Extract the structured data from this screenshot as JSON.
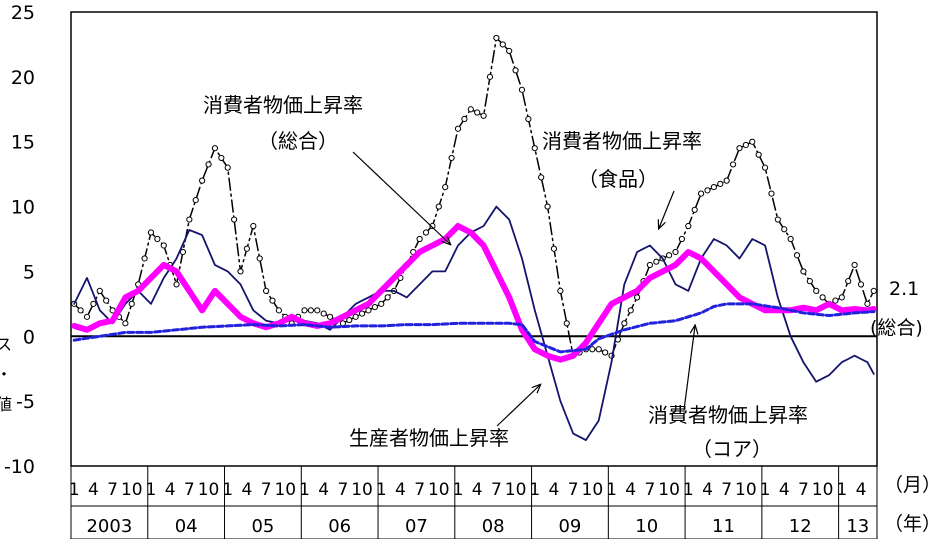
{
  "chart_data": {
    "type": "line",
    "title": "",
    "ylim": [
      -10,
      25
    ],
    "yticks": [
      "25",
      "20",
      "15",
      "10",
      "5",
      "0",
      "-5",
      "-10"
    ],
    "x_axis": {
      "month_label": "（月）",
      "year_label": "（年）",
      "year_groups": [
        {
          "year": "2003",
          "months": [
            "1",
            "4",
            "7",
            "10"
          ]
        },
        {
          "year": "04",
          "months": [
            "1",
            "4",
            "7",
            "10"
          ]
        },
        {
          "year": "05",
          "months": [
            "1",
            "4",
            "7",
            "10"
          ]
        },
        {
          "year": "06",
          "months": [
            "1",
            "4",
            "7",
            "10"
          ]
        },
        {
          "year": "07",
          "months": [
            "1",
            "4",
            "7",
            "10"
          ]
        },
        {
          "year": "08",
          "months": [
            "1",
            "4",
            "7",
            "10"
          ]
        },
        {
          "year": "09",
          "months": [
            "1",
            "4",
            "7",
            "10"
          ]
        },
        {
          "year": "10",
          "months": [
            "1",
            "4",
            "7",
            "10"
          ]
        },
        {
          "year": "11",
          "months": [
            "1",
            "4",
            "7",
            "10"
          ]
        },
        {
          "year": "12",
          "months": [
            "1",
            "4",
            "7",
            "10"
          ]
        },
        {
          "year": "13",
          "months": [
            "1",
            "4"
          ]
        }
      ]
    },
    "series": [
      {
        "name": "生産者物価上昇率",
        "color": "#14146e",
        "style": "thin-solid",
        "anchors": [
          [
            0,
            2.5
          ],
          [
            2,
            4.5
          ],
          [
            4,
            2.0
          ],
          [
            6,
            1.0
          ],
          [
            8,
            2.5
          ],
          [
            10,
            3.5
          ],
          [
            12,
            2.5
          ],
          [
            14,
            4.5
          ],
          [
            16,
            6.0
          ],
          [
            18,
            8.2
          ],
          [
            20,
            7.8
          ],
          [
            22,
            5.5
          ],
          [
            24,
            5.0
          ],
          [
            26,
            4.0
          ],
          [
            28,
            2.0
          ],
          [
            30,
            1.2
          ],
          [
            32,
            1.0
          ],
          [
            34,
            1.6
          ],
          [
            36,
            1.2
          ],
          [
            38,
            1.0
          ],
          [
            40,
            0.5
          ],
          [
            42,
            1.5
          ],
          [
            44,
            2.5
          ],
          [
            46,
            3.0
          ],
          [
            48,
            3.5
          ],
          [
            50,
            3.5
          ],
          [
            52,
            3.0
          ],
          [
            54,
            4.0
          ],
          [
            56,
            5.0
          ],
          [
            58,
            5.0
          ],
          [
            60,
            7.0
          ],
          [
            62,
            8.0
          ],
          [
            64,
            8.5
          ],
          [
            66,
            10.0
          ],
          [
            68,
            9.0
          ],
          [
            70,
            6.0
          ],
          [
            72,
            2.0
          ],
          [
            74,
            -1.5
          ],
          [
            76,
            -5.0
          ],
          [
            78,
            -7.5
          ],
          [
            80,
            -8.0
          ],
          [
            82,
            -6.5
          ],
          [
            84,
            -2.0
          ],
          [
            86,
            4.0
          ],
          [
            88,
            6.5
          ],
          [
            90,
            7.0
          ],
          [
            92,
            6.0
          ],
          [
            94,
            4.0
          ],
          [
            96,
            3.5
          ],
          [
            98,
            6.0
          ],
          [
            100,
            7.5
          ],
          [
            102,
            7.0
          ],
          [
            104,
            6.0
          ],
          [
            106,
            7.5
          ],
          [
            108,
            7.0
          ],
          [
            110,
            3.0
          ],
          [
            112,
            0.0
          ],
          [
            114,
            -2.0
          ],
          [
            116,
            -3.5
          ],
          [
            118,
            -3.0
          ],
          [
            120,
            -2.0
          ],
          [
            122,
            -1.5
          ],
          [
            124,
            -2.0
          ],
          [
            125,
            -2.9
          ]
        ]
      },
      {
        "name": "消費者物価上昇率（食品）",
        "color": "#000000",
        "style": "dash-dot with circle markers",
        "anchors": [
          [
            0,
            2.5
          ],
          [
            2,
            1.5
          ],
          [
            4,
            3.5
          ],
          [
            6,
            2.0
          ],
          [
            8,
            1.0
          ],
          [
            10,
            4.0
          ],
          [
            12,
            8.0
          ],
          [
            14,
            7.0
          ],
          [
            16,
            4.0
          ],
          [
            18,
            9.0
          ],
          [
            20,
            12.0
          ],
          [
            22,
            14.5
          ],
          [
            24,
            13.0
          ],
          [
            26,
            5.0
          ],
          [
            28,
            8.5
          ],
          [
            30,
            3.5
          ],
          [
            32,
            2.0
          ],
          [
            34,
            1.0
          ],
          [
            36,
            2.0
          ],
          [
            38,
            2.0
          ],
          [
            40,
            1.5
          ],
          [
            42,
            1.0
          ],
          [
            44,
            1.5
          ],
          [
            46,
            2.0
          ],
          [
            48,
            2.5
          ],
          [
            50,
            3.5
          ],
          [
            52,
            5.5
          ],
          [
            54,
            7.5
          ],
          [
            56,
            8.5
          ],
          [
            58,
            11.5
          ],
          [
            60,
            16.0
          ],
          [
            62,
            17.5
          ],
          [
            64,
            17.0
          ],
          [
            66,
            23.0
          ],
          [
            68,
            22.0
          ],
          [
            70,
            19.0
          ],
          [
            72,
            14.5
          ],
          [
            74,
            10.0
          ],
          [
            76,
            3.5
          ],
          [
            78,
            -1.5
          ],
          [
            80,
            -1.0
          ],
          [
            82,
            -1.0
          ],
          [
            84,
            -1.5
          ],
          [
            86,
            1.0
          ],
          [
            88,
            3.0
          ],
          [
            90,
            5.5
          ],
          [
            92,
            6.0
          ],
          [
            94,
            6.5
          ],
          [
            96,
            8.5
          ],
          [
            98,
            11.0
          ],
          [
            100,
            11.5
          ],
          [
            102,
            12.0
          ],
          [
            104,
            14.5
          ],
          [
            106,
            15.0
          ],
          [
            108,
            13.0
          ],
          [
            110,
            9.0
          ],
          [
            112,
            7.5
          ],
          [
            114,
            5.0
          ],
          [
            116,
            3.5
          ],
          [
            118,
            2.5
          ],
          [
            120,
            3.0
          ],
          [
            122,
            5.5
          ],
          [
            124,
            2.5
          ],
          [
            125,
            3.5
          ]
        ]
      },
      {
        "name": "消費者物価上昇率（総合）",
        "color": "#ff00ff",
        "style": "thick-solid",
        "anchors": [
          [
            0,
            0.8
          ],
          [
            2,
            0.5
          ],
          [
            4,
            1.0
          ],
          [
            6,
            1.2
          ],
          [
            8,
            3.0
          ],
          [
            10,
            3.5
          ],
          [
            12,
            4.5
          ],
          [
            14,
            5.5
          ],
          [
            16,
            5.0
          ],
          [
            18,
            3.5
          ],
          [
            20,
            2.0
          ],
          [
            22,
            3.5
          ],
          [
            24,
            2.5
          ],
          [
            26,
            1.5
          ],
          [
            28,
            1.0
          ],
          [
            30,
            0.7
          ],
          [
            32,
            1.0
          ],
          [
            34,
            1.5
          ],
          [
            36,
            1.0
          ],
          [
            38,
            0.8
          ],
          [
            40,
            1.0
          ],
          [
            42,
            1.5
          ],
          [
            44,
            2.0
          ],
          [
            46,
            2.5
          ],
          [
            48,
            3.5
          ],
          [
            50,
            4.5
          ],
          [
            52,
            5.5
          ],
          [
            54,
            6.5
          ],
          [
            56,
            7.0
          ],
          [
            58,
            7.5
          ],
          [
            60,
            8.5
          ],
          [
            62,
            8.0
          ],
          [
            64,
            7.0
          ],
          [
            66,
            5.0
          ],
          [
            68,
            3.0
          ],
          [
            70,
            0.5
          ],
          [
            72,
            -1.0
          ],
          [
            74,
            -1.5
          ],
          [
            76,
            -1.8
          ],
          [
            78,
            -1.5
          ],
          [
            80,
            -0.5
          ],
          [
            82,
            1.0
          ],
          [
            84,
            2.5
          ],
          [
            86,
            3.0
          ],
          [
            88,
            3.5
          ],
          [
            90,
            4.5
          ],
          [
            92,
            5.0
          ],
          [
            94,
            5.5
          ],
          [
            96,
            6.5
          ],
          [
            98,
            6.0
          ],
          [
            100,
            5.0
          ],
          [
            102,
            4.0
          ],
          [
            104,
            3.0
          ],
          [
            106,
            2.5
          ],
          [
            108,
            2.0
          ],
          [
            110,
            2.0
          ],
          [
            112,
            2.0
          ],
          [
            114,
            2.2
          ],
          [
            116,
            2.0
          ],
          [
            118,
            2.5
          ],
          [
            120,
            2.0
          ],
          [
            122,
            2.1
          ],
          [
            124,
            2.0
          ],
          [
            125,
            2.1
          ]
        ]
      },
      {
        "name": "消費者物価上昇率（コア）",
        "color": "#2222dd",
        "style": "dashed",
        "anchors": [
          [
            0,
            -0.3
          ],
          [
            4,
            0.0
          ],
          [
            8,
            0.3
          ],
          [
            12,
            0.3
          ],
          [
            16,
            0.5
          ],
          [
            20,
            0.7
          ],
          [
            24,
            0.8
          ],
          [
            28,
            0.9
          ],
          [
            32,
            0.8
          ],
          [
            36,
            0.9
          ],
          [
            40,
            0.7
          ],
          [
            44,
            0.8
          ],
          [
            48,
            0.8
          ],
          [
            52,
            0.9
          ],
          [
            56,
            0.9
          ],
          [
            60,
            1.0
          ],
          [
            64,
            1.0
          ],
          [
            68,
            1.0
          ],
          [
            70,
            0.9
          ],
          [
            72,
            -0.4
          ],
          [
            76,
            -1.2
          ],
          [
            80,
            -1.0
          ],
          [
            82,
            -0.2
          ],
          [
            86,
            0.5
          ],
          [
            90,
            1.0
          ],
          [
            94,
            1.2
          ],
          [
            98,
            1.8
          ],
          [
            100,
            2.3
          ],
          [
            102,
            2.5
          ],
          [
            106,
            2.5
          ],
          [
            110,
            2.2
          ],
          [
            114,
            1.8
          ],
          [
            118,
            1.6
          ],
          [
            122,
            1.8
          ],
          [
            125,
            1.9
          ]
        ]
      }
    ],
    "annotations": [
      {
        "text": "消費者物価上昇率",
        "sub": "（総合）"
      },
      {
        "text": "消費者物価上昇率",
        "sub": "（食品）"
      },
      {
        "text": "生産者物価上昇率",
        "sub": ""
      },
      {
        "text": "消費者物価上昇率",
        "sub": "（コア）"
      }
    ],
    "end_value_label": "2.1",
    "end_value_sub": "(総合)",
    "left_clipped_text": [
      "ス",
      "ガス・",
      "値"
    ]
  }
}
